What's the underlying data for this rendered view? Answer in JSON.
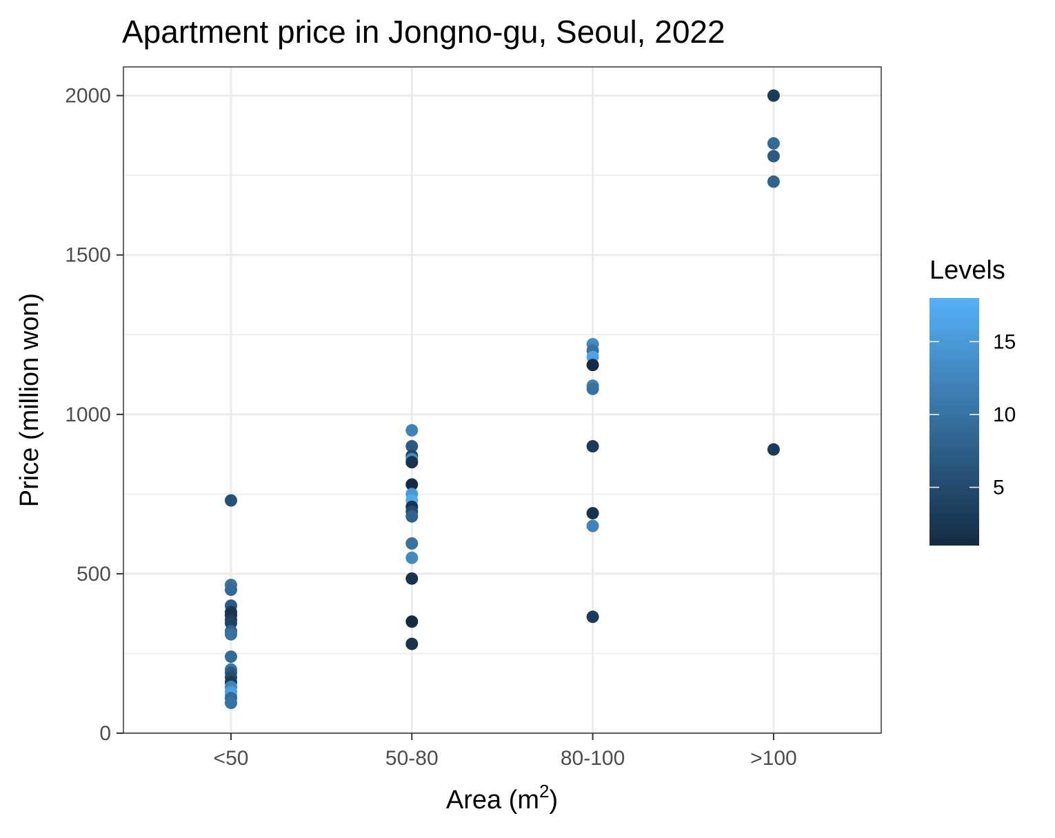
{
  "chart_data": {
    "type": "scatter",
    "title": "Apartment price in Jongno-gu, Seoul, 2022",
    "xlabel": "Area (m",
    "xlabel_superscript": "2",
    "xlabel_suffix": ")",
    "ylabel": "Price (million won)",
    "categories": [
      "<50",
      "50-80",
      "80-100",
      ">100"
    ],
    "y_ticks": [
      0,
      500,
      1000,
      1500,
      2000
    ],
    "ylim": [
      0,
      2090
    ],
    "grid": true,
    "legend": {
      "title": "Levels",
      "position": "right",
      "range": [
        1,
        18
      ],
      "ticks": [
        5,
        10,
        15
      ],
      "color_low": "#132b43",
      "color_high": "#56b1f7"
    },
    "points": [
      {
        "x": "<50",
        "y": 730,
        "level": 6
      },
      {
        "x": "<50",
        "y": 465,
        "level": 10
      },
      {
        "x": "<50",
        "y": 450,
        "level": 9
      },
      {
        "x": "<50",
        "y": 400,
        "level": 7
      },
      {
        "x": "<50",
        "y": 380,
        "level": 3
      },
      {
        "x": "<50",
        "y": 370,
        "level": 2
      },
      {
        "x": "<50",
        "y": 355,
        "level": 3
      },
      {
        "x": "<50",
        "y": 345,
        "level": 4
      },
      {
        "x": "<50",
        "y": 320,
        "level": 8
      },
      {
        "x": "<50",
        "y": 310,
        "level": 10
      },
      {
        "x": "<50",
        "y": 240,
        "level": 9
      },
      {
        "x": "<50",
        "y": 200,
        "level": 11
      },
      {
        "x": "<50",
        "y": 190,
        "level": 7
      },
      {
        "x": "<50",
        "y": 175,
        "level": 5
      },
      {
        "x": "<50",
        "y": 160,
        "level": 3
      },
      {
        "x": "<50",
        "y": 145,
        "level": 12
      },
      {
        "x": "<50",
        "y": 130,
        "level": 15
      },
      {
        "x": "<50",
        "y": 120,
        "level": 16
      },
      {
        "x": "<50",
        "y": 110,
        "level": 9
      },
      {
        "x": "<50",
        "y": 95,
        "level": 10
      },
      {
        "x": "50-80",
        "y": 950,
        "level": 12
      },
      {
        "x": "50-80",
        "y": 900,
        "level": 7
      },
      {
        "x": "50-80",
        "y": 870,
        "level": 4
      },
      {
        "x": "50-80",
        "y": 860,
        "level": 13
      },
      {
        "x": "50-80",
        "y": 850,
        "level": 2
      },
      {
        "x": "50-80",
        "y": 780,
        "level": 1
      },
      {
        "x": "50-80",
        "y": 750,
        "level": 15
      },
      {
        "x": "50-80",
        "y": 730,
        "level": 17
      },
      {
        "x": "50-80",
        "y": 710,
        "level": 2
      },
      {
        "x": "50-80",
        "y": 695,
        "level": 5
      },
      {
        "x": "50-80",
        "y": 680,
        "level": 8
      },
      {
        "x": "50-80",
        "y": 595,
        "level": 10
      },
      {
        "x": "50-80",
        "y": 550,
        "level": 13
      },
      {
        "x": "50-80",
        "y": 485,
        "level": 2
      },
      {
        "x": "50-80",
        "y": 350,
        "level": 1
      },
      {
        "x": "50-80",
        "y": 280,
        "level": 2
      },
      {
        "x": "80-100",
        "y": 1220,
        "level": 13
      },
      {
        "x": "80-100",
        "y": 1200,
        "level": 10
      },
      {
        "x": "80-100",
        "y": 1180,
        "level": 16
      },
      {
        "x": "80-100",
        "y": 1155,
        "level": 1
      },
      {
        "x": "80-100",
        "y": 1090,
        "level": 12
      },
      {
        "x": "80-100",
        "y": 1080,
        "level": 10
      },
      {
        "x": "80-100",
        "y": 900,
        "level": 3
      },
      {
        "x": "80-100",
        "y": 690,
        "level": 2
      },
      {
        "x": "80-100",
        "y": 650,
        "level": 12
      },
      {
        "x": "80-100",
        "y": 365,
        "level": 3
      },
      {
        "x": ">100",
        "y": 2000,
        "level": 3
      },
      {
        "x": ">100",
        "y": 1850,
        "level": 9
      },
      {
        "x": ">100",
        "y": 1810,
        "level": 7
      },
      {
        "x": ">100",
        "y": 1730,
        "level": 8
      },
      {
        "x": ">100",
        "y": 890,
        "level": 3
      }
    ]
  }
}
